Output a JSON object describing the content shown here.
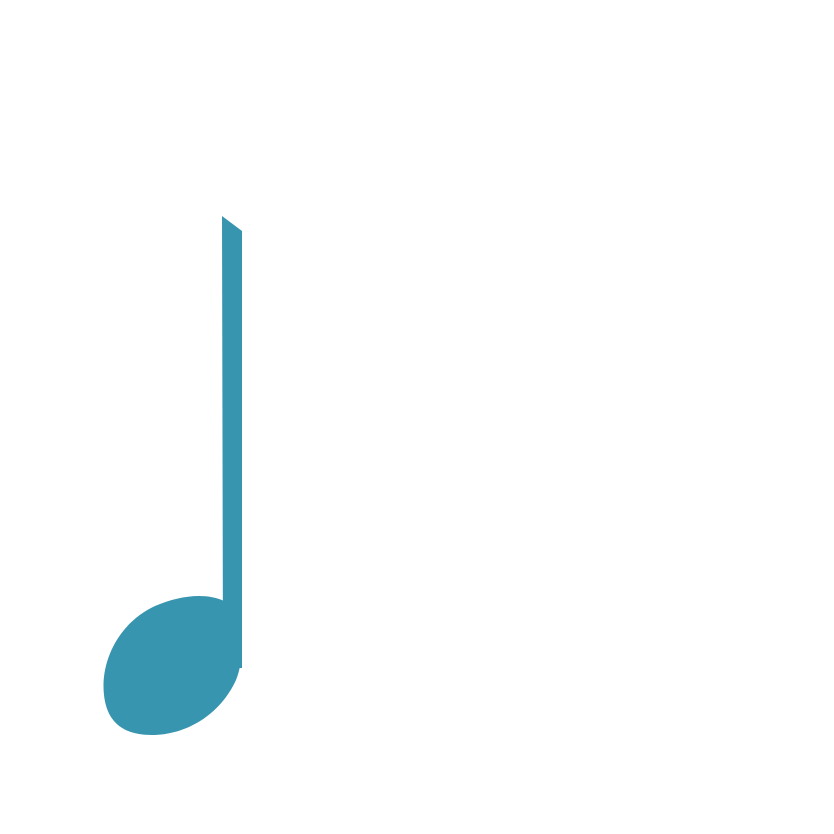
{
  "canvas": {
    "background": "#ffffff"
  },
  "icon": {
    "name": "quarter-note-icon",
    "color": "#3895af"
  }
}
